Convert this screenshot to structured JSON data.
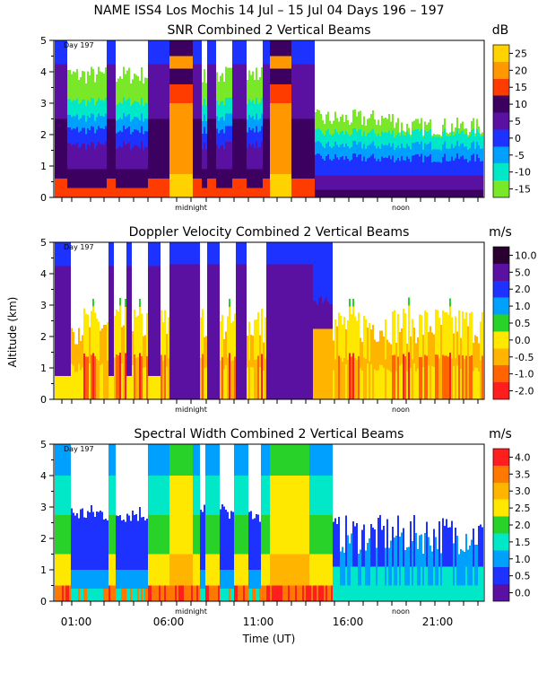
{
  "figure": {
    "title": "NAME ISS4 Los Mochis  14 Jul – 15 Jul 04 Days 196 – 197",
    "xlabel": "Time (UT)",
    "ylabel": "Altitude (km)"
  },
  "chart_data": [
    {
      "type": "heatmap",
      "title": "SNR Combined 2 Vertical Beams",
      "unit": "dB",
      "day_label": "Day 197",
      "ylim": [
        0,
        5
      ],
      "yticks": [
        "0",
        "1",
        "2",
        "3",
        "4",
        "5"
      ],
      "x_markers": [
        "midnight",
        "noon"
      ],
      "colorbar": {
        "labels": [
          "25",
          "20",
          "15",
          "10",
          "5",
          "0",
          "-5",
          "-10",
          "-15"
        ],
        "colors": [
          "#ffd200",
          "#ff9800",
          "#ff3c00",
          "#3c0060",
          "#5a10a0",
          "#1e32ff",
          "#00a0ff",
          "#00e8c8",
          "#78e828"
        ]
      }
    },
    {
      "type": "heatmap",
      "title": "Doppler Velocity Combined 2 Vertical Beams",
      "unit": "m/s",
      "day_label": "Day 197",
      "ylim": [
        0,
        5
      ],
      "yticks": [
        "0",
        "1",
        "2",
        "3",
        "4",
        "5"
      ],
      "x_markers": [
        "midnight",
        "noon"
      ],
      "colorbar": {
        "labels": [
          "10.0",
          "5.0",
          "2.0",
          "1.0",
          "0.5",
          "0.0",
          "-0.5",
          "-1.0",
          "-2.0"
        ],
        "colors": [
          "#2a0030",
          "#5a10a0",
          "#1e32ff",
          "#00a0ff",
          "#28d228",
          "#ffe800",
          "#ffb400",
          "#ff6400",
          "#ff1e1e"
        ]
      }
    },
    {
      "type": "heatmap",
      "title": "Spectral Width Combined 2 Vertical Beams",
      "unit": "m/s",
      "day_label": "Day 197",
      "ylim": [
        0,
        5
      ],
      "yticks": [
        "0",
        "1",
        "2",
        "3",
        "4",
        "5"
      ],
      "x_markers": [
        "midnight",
        "noon"
      ],
      "xticks": [
        "01:00",
        "06:00",
        "11:00",
        "16:00",
        "21:00"
      ],
      "colorbar": {
        "labels": [
          "4.0",
          "3.5",
          "3.0",
          "2.5",
          "2.0",
          "1.5",
          "1.0",
          "0.5",
          "0.0"
        ],
        "colors": [
          "#ff1e1e",
          "#ff7800",
          "#ffb400",
          "#ffe800",
          "#28d228",
          "#00e8c8",
          "#00a0ff",
          "#1e32ff",
          "#5a10a0"
        ]
      }
    }
  ]
}
